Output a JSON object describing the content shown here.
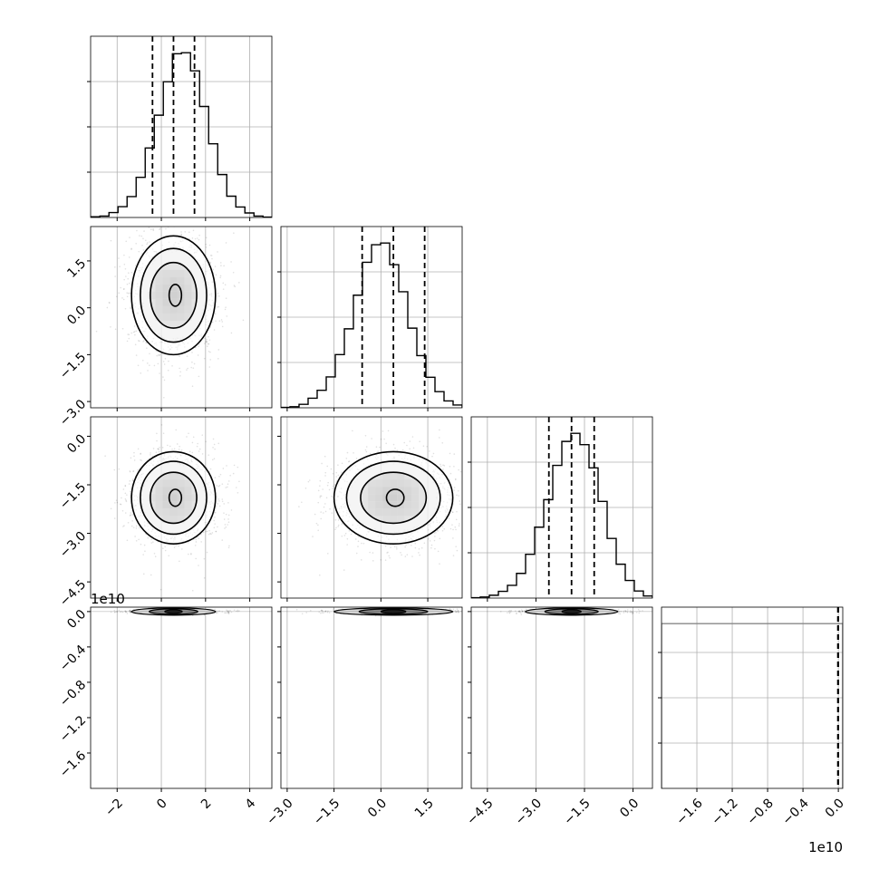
{
  "chart_data": {
    "type": "corner",
    "grid": true,
    "offset_label_y": "1e10",
    "offset_label_x": "1e10",
    "quantiles": [
      0.16,
      0.5,
      0.84
    ],
    "variables": [
      {
        "range": [
          -3.2,
          5.0
        ],
        "ticks": [
          -2,
          0,
          2,
          4
        ],
        "tick_labels": [
          "−2",
          "0",
          "2",
          "4"
        ],
        "quantile_values": [
          -0.4,
          0.55,
          1.5
        ],
        "hist_bin_edges": [
          -3.2,
          -2.78,
          -2.37,
          -1.96,
          -1.55,
          -1.14,
          -0.73,
          -0.32,
          0.09,
          0.5,
          0.91,
          1.32,
          1.73,
          2.14,
          2.55,
          2.96,
          3.37,
          3.78,
          4.19,
          4.6,
          5.0
        ],
        "hist_counts": [
          2,
          4,
          14,
          31,
          60,
          115,
          199,
          293,
          389,
          469,
          472,
          420,
          318,
          211,
          123,
          61,
          30,
          13,
          4,
          1
        ]
      },
      {
        "range": [
          -3.2,
          2.6
        ],
        "ticks": [
          -3.0,
          -1.5,
          0.0,
          1.5
        ],
        "tick_labels": [
          "−3.0",
          "−1.5",
          "0.0",
          "1.5"
        ],
        "quantile_values": [
          -0.6,
          0.4,
          1.4
        ],
        "hist_bin_edges": [
          -3.2,
          -2.91,
          -2.62,
          -2.33,
          -2.04,
          -1.75,
          -1.46,
          -1.17,
          -0.88,
          -0.59,
          -0.3,
          -0.01,
          0.28,
          0.57,
          0.86,
          1.15,
          1.44,
          1.73,
          2.02,
          2.31,
          2.6
        ],
        "hist_counts": [
          1,
          3,
          10,
          28,
          51,
          90,
          155,
          230,
          328,
          424,
          475,
          480,
          417,
          338,
          232,
          152,
          89,
          47,
          20,
          8
        ]
      },
      {
        "range": [
          -5.0,
          0.6
        ],
        "ticks": [
          -4.5,
          -3.0,
          -1.5,
          0.0
        ],
        "tick_labels": [
          "−4.5",
          "−3.0",
          "−1.5",
          "0.0"
        ],
        "quantile_values": [
          -2.6,
          -1.9,
          -1.2
        ],
        "hist_bin_edges": [
          -5.0,
          -4.72,
          -4.44,
          -4.16,
          -3.88,
          -3.6,
          -3.32,
          -3.04,
          -2.76,
          -2.48,
          -2.2,
          -1.92,
          -1.64,
          -1.36,
          -1.08,
          -0.8,
          -0.52,
          -0.24,
          0.04,
          0.32,
          0.6
        ],
        "hist_counts": [
          1,
          3,
          8,
          19,
          36,
          70,
          124,
          201,
          279,
          376,
          444,
          467,
          435,
          369,
          274,
          169,
          96,
          50,
          20,
          6
        ]
      },
      {
        "range": [
          -2.0,
          0.05
        ],
        "ticks": [
          -1.6,
          -1.2,
          -0.8,
          -0.4,
          0.0
        ],
        "tick_labels": [
          "−1.6",
          "−1.2",
          "−0.8",
          "−0.4",
          "0.0"
        ],
        "quantile_values": [
          -0.005,
          -0.001,
          0.0
        ],
        "hist_bin_edges": [
          -2.0,
          0.05
        ],
        "hist_counts": [
          1
        ]
      }
    ],
    "pairs": [
      {
        "x_var": 0,
        "y_var": 1,
        "mean": [
          0.55,
          0.4
        ],
        "sd": [
          1.0,
          1.0
        ]
      },
      {
        "x_var": 0,
        "y_var": 2,
        "mean": [
          0.55,
          -1.9
        ],
        "sd": [
          1.0,
          0.75
        ]
      },
      {
        "x_var": 1,
        "y_var": 2,
        "mean": [
          0.4,
          -1.9
        ],
        "sd": [
          1.0,
          0.75
        ]
      },
      {
        "x_var": 0,
        "y_var": 3,
        "mean": [
          0.55,
          0.0
        ],
        "sd": [
          1.0,
          0.004
        ]
      },
      {
        "x_var": 1,
        "y_var": 3,
        "mean": [
          0.4,
          0.0
        ],
        "sd": [
          1.0,
          0.004
        ]
      },
      {
        "x_var": 2,
        "y_var": 3,
        "mean": [
          -1.9,
          0.0
        ],
        "sd": [
          0.75,
          0.004
        ]
      }
    ]
  }
}
